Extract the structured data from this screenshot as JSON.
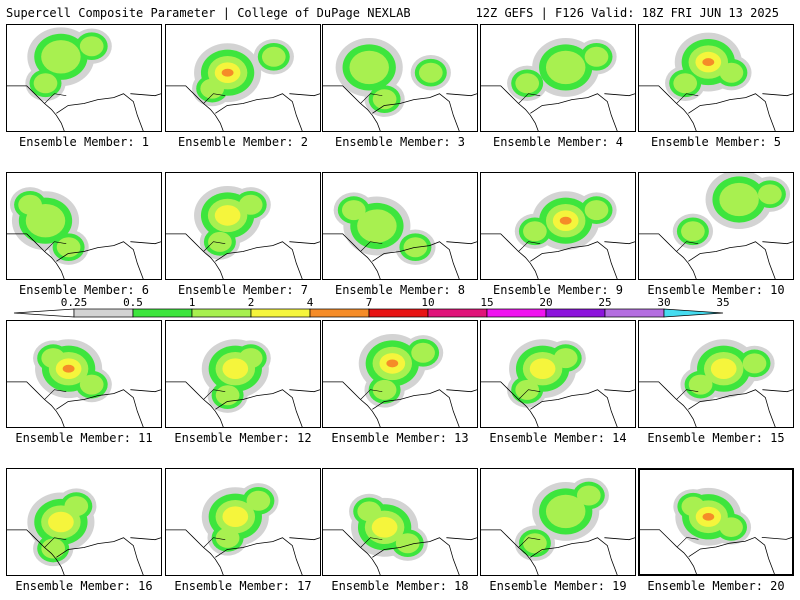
{
  "header": {
    "title": "Supercell Composite Parameter | College of DuPage NEXLAB",
    "run_info": "12Z GEFS | F126 Valid: 18Z FRI JUN 13 2025"
  },
  "colors": {
    "c0": "#d3d3d3",
    "c1": "#3de53d",
    "c2": "#a8f050",
    "c3": "#f5f53c",
    "c4": "#f58c28",
    "c5": "#e81414",
    "c6": "#e0147a",
    "c7": "#f014f0",
    "c8": "#8c14dc",
    "c9": "#b46ee0",
    "c10": "#46dcf0"
  },
  "colorbar": {
    "labels": [
      "0.25",
      "0.5",
      "1",
      "2",
      "4",
      "7",
      "10",
      "15",
      "20",
      "25",
      "30",
      "35"
    ],
    "values": [
      0.25,
      0.5,
      1,
      2,
      4,
      7,
      10,
      15,
      20,
      25,
      30,
      35
    ]
  },
  "panels": [
    {
      "label": "Ensemble Member: 1",
      "max_level": 2
    },
    {
      "label": "Ensemble Member: 2",
      "max_level": 4
    },
    {
      "label": "Ensemble Member: 3",
      "max_level": 2
    },
    {
      "label": "Ensemble Member: 4",
      "max_level": 2
    },
    {
      "label": "Ensemble Member: 5",
      "max_level": 4
    },
    {
      "label": "Ensemble Member: 6",
      "max_level": 2
    },
    {
      "label": "Ensemble Member: 7",
      "max_level": 3
    },
    {
      "label": "Ensemble Member: 8",
      "max_level": 2
    },
    {
      "label": "Ensemble Member: 9",
      "max_level": 4
    },
    {
      "label": "Ensemble Member: 10",
      "max_level": 2
    },
    {
      "label": "Ensemble Member: 11",
      "max_level": 4
    },
    {
      "label": "Ensemble Member: 12",
      "max_level": 3
    },
    {
      "label": "Ensemble Member: 13",
      "max_level": 4
    },
    {
      "label": "Ensemble Member: 14",
      "max_level": 3
    },
    {
      "label": "Ensemble Member: 15",
      "max_level": 3
    },
    {
      "label": "Ensemble Member: 16",
      "max_level": 3
    },
    {
      "label": "Ensemble Member: 17",
      "max_level": 3
    },
    {
      "label": "Ensemble Member: 18",
      "max_level": 3
    },
    {
      "label": "Ensemble Member: 19",
      "max_level": 2
    },
    {
      "label": "Ensemble Member: 20",
      "max_level": 4,
      "selected": true
    }
  ]
}
